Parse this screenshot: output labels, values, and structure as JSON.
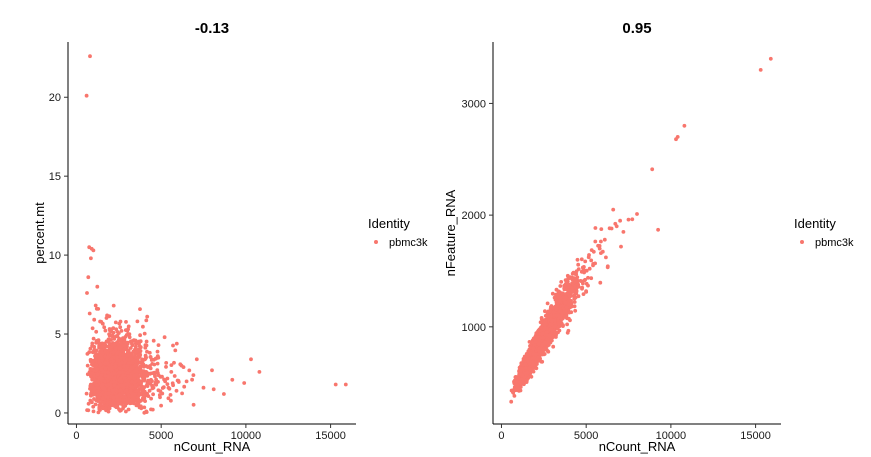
{
  "colors": {
    "point": "#F8766D",
    "axis": "#000000"
  },
  "chart_data": [
    {
      "type": "scatter",
      "title": "-0.13",
      "xlabel": "nCount_RNA",
      "ylabel": "percent.mt",
      "xlim": [
        -500,
        16500
      ],
      "ylim": [
        -0.7,
        23.5
      ],
      "x_ticks": [
        0,
        5000,
        10000,
        15000
      ],
      "x_tick_labels": [
        "0",
        "5000",
        "10000",
        "15000"
      ],
      "y_ticks": [
        0,
        5,
        10,
        15,
        20
      ],
      "y_tick_labels": [
        "0",
        "5",
        "10",
        "15",
        "20"
      ],
      "grid": false,
      "legend": {
        "title": "Identity",
        "entries": [
          "pbmc3k"
        ],
        "placement": "right"
      },
      "series": [
        {
          "name": "pbmc3k",
          "cluster": {
            "x_median": 2200,
            "x_spread": 800,
            "y_median": 2.1,
            "y_spread": 1.1,
            "count": 2500
          },
          "points": [
            [
              800,
              22.6
            ],
            [
              600,
              20.1
            ],
            [
              750,
              10.5
            ],
            [
              900,
              10.4
            ],
            [
              1000,
              10.3
            ],
            [
              850,
              9.8
            ],
            [
              700,
              8.6
            ],
            [
              620,
              7.6
            ],
            [
              780,
              6.3
            ],
            [
              1200,
              6.6
            ],
            [
              2200,
              6.8
            ],
            [
              3000,
              5.2
            ],
            [
              5200,
              4.8
            ],
            [
              6200,
              3.0
            ],
            [
              7100,
              3.4
            ],
            [
              8000,
              2.7
            ],
            [
              10300,
              3.4
            ],
            [
              10800,
              2.6
            ],
            [
              9900,
              1.9
            ],
            [
              8100,
              1.5
            ],
            [
              7500,
              1.6
            ],
            [
              6900,
              2.4
            ],
            [
              15300,
              1.8
            ],
            [
              15900,
              1.8
            ],
            [
              6500,
              2.0
            ],
            [
              5600,
              2.6
            ],
            [
              8700,
              1.2
            ],
            [
              9200,
              2.1
            ],
            [
              4800,
              3.6
            ],
            [
              3600,
              4.4
            ]
          ]
        }
      ]
    },
    {
      "type": "scatter",
      "title": "0.95",
      "xlabel": "nCount_RNA",
      "ylabel": "nFeature_RNA",
      "xlim": [
        -500,
        16500
      ],
      "ylim": [
        130,
        3550
      ],
      "x_ticks": [
        0,
        5000,
        10000,
        15000
      ],
      "x_tick_labels": [
        "0",
        "5000",
        "10000",
        "15000"
      ],
      "y_ticks": [
        1000,
        2000,
        3000
      ],
      "y_tick_labels": [
        "1000",
        "2000",
        "3000"
      ],
      "grid": false,
      "legend": {
        "title": "Identity",
        "entries": [
          "pbmc3k"
        ],
        "placement": "right"
      },
      "series": [
        {
          "name": "pbmc3k",
          "cluster": {
            "x_median": 2200,
            "x_spread": 800,
            "count": 2500
          },
          "points": [
            [
              15900,
              3400
            ],
            [
              15300,
              3300
            ],
            [
              10800,
              2800
            ],
            [
              10400,
              2700
            ],
            [
              10300,
              2680
            ],
            [
              8900,
              2410
            ],
            [
              8000,
              2010
            ],
            [
              7500,
              1960
            ],
            [
              7200,
              1850
            ],
            [
              7000,
              1950
            ],
            [
              6800,
              1900
            ],
            [
              6500,
              1880
            ],
            [
              6100,
              1780
            ],
            [
              5800,
              1700
            ],
            [
              5400,
              1550
            ]
          ]
        }
      ]
    }
  ]
}
